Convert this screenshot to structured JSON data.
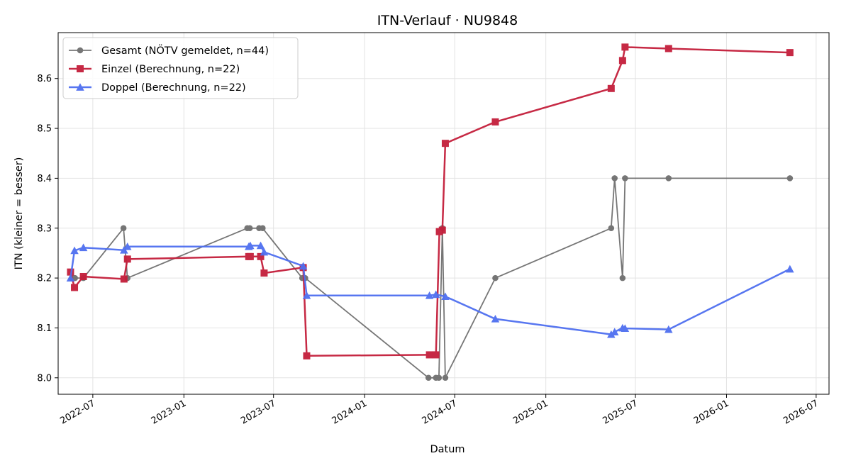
{
  "chart_data": {
    "type": "line",
    "title": "ITN-Verlauf · NU9848",
    "xlabel": "Datum",
    "ylabel": "ITN  (kleiner = besser)",
    "x_axis": "date",
    "xlim": [
      "2022-04-22",
      "2026-07-27"
    ],
    "ylim": [
      7.967,
      8.692
    ],
    "x_ticks": [
      "2022-07",
      "2023-01",
      "2023-07",
      "2024-01",
      "2024-07",
      "2025-01",
      "2025-07",
      "2026-01",
      "2026-07"
    ],
    "y_ticks": [
      8.0,
      8.1,
      8.2,
      8.3,
      8.4,
      8.5,
      8.6
    ],
    "grid": true,
    "legend_position": "upper left",
    "series": [
      {
        "name": "Gesamt (NÖTV gemeldet, n=44)",
        "color": "#555555",
        "marker": "circle",
        "points": [
          [
            "2022-05-20",
            8.2
          ],
          [
            "2022-05-26",
            8.2
          ],
          [
            "2022-06-12",
            8.2
          ],
          [
            "2022-09-01",
            8.3
          ],
          [
            "2022-09-09",
            8.2
          ],
          [
            "2023-05-09",
            8.3
          ],
          [
            "2023-05-14",
            8.3
          ],
          [
            "2023-06-02",
            8.3
          ],
          [
            "2023-06-09",
            8.3
          ],
          [
            "2023-08-28",
            8.2
          ],
          [
            "2023-09-03",
            8.2
          ],
          [
            "2024-05-09",
            8.0
          ],
          [
            "2024-05-24",
            8.0
          ],
          [
            "2024-05-30",
            8.0
          ],
          [
            "2024-06-06",
            8.3
          ],
          [
            "2024-06-12",
            8.0
          ],
          [
            "2024-09-21",
            8.2
          ],
          [
            "2025-05-13",
            8.3
          ],
          [
            "2025-05-20",
            8.4
          ],
          [
            "2025-06-05",
            8.2
          ],
          [
            "2025-06-10",
            8.4
          ],
          [
            "2025-09-06",
            8.4
          ],
          [
            "2026-05-09",
            8.4
          ]
        ]
      },
      {
        "name": "Einzel (Berechnung, n=22)",
        "color": "#c41e3a",
        "marker": "square",
        "points": [
          [
            "2022-05-17",
            8.212
          ],
          [
            "2022-05-25",
            8.181
          ],
          [
            "2022-06-12",
            8.203
          ],
          [
            "2022-09-02",
            8.198
          ],
          [
            "2022-09-09",
            8.238
          ],
          [
            "2023-05-12",
            8.243
          ],
          [
            "2023-05-15",
            8.243
          ],
          [
            "2023-06-05",
            8.243
          ],
          [
            "2023-06-12",
            8.21
          ],
          [
            "2023-08-30",
            8.221
          ],
          [
            "2023-09-06",
            8.044
          ],
          [
            "2024-05-11",
            8.046
          ],
          [
            "2024-05-24",
            8.046
          ],
          [
            "2024-05-31",
            8.293
          ],
          [
            "2024-06-06",
            8.296
          ],
          [
            "2024-06-12",
            8.47
          ],
          [
            "2024-09-21",
            8.513
          ],
          [
            "2025-05-13",
            8.58
          ],
          [
            "2025-06-05",
            8.636
          ],
          [
            "2025-06-10",
            8.663
          ],
          [
            "2025-09-06",
            8.66
          ],
          [
            "2026-05-09",
            8.652
          ]
        ]
      },
      {
        "name": "Doppel (Berechnung, n=22)",
        "color": "#4f6ff0",
        "marker": "triangle",
        "points": [
          [
            "2022-05-17",
            8.2
          ],
          [
            "2022-05-25",
            8.255
          ],
          [
            "2022-06-12",
            8.261
          ],
          [
            "2022-09-02",
            8.256
          ],
          [
            "2022-09-09",
            8.263
          ],
          [
            "2023-05-12",
            8.263
          ],
          [
            "2023-05-15",
            8.265
          ],
          [
            "2023-06-05",
            8.265
          ],
          [
            "2023-06-12",
            8.252
          ],
          [
            "2023-08-30",
            8.224
          ],
          [
            "2023-09-06",
            8.165
          ],
          [
            "2024-05-11",
            8.165
          ],
          [
            "2024-05-24",
            8.167
          ],
          [
            "2024-06-12",
            8.163
          ],
          [
            "2024-09-21",
            8.118
          ],
          [
            "2025-05-13",
            8.087
          ],
          [
            "2025-05-20",
            8.092
          ],
          [
            "2025-06-05",
            8.1
          ],
          [
            "2025-06-10",
            8.099
          ],
          [
            "2025-09-06",
            8.097
          ],
          [
            "2026-05-09",
            8.218
          ]
        ]
      }
    ]
  }
}
